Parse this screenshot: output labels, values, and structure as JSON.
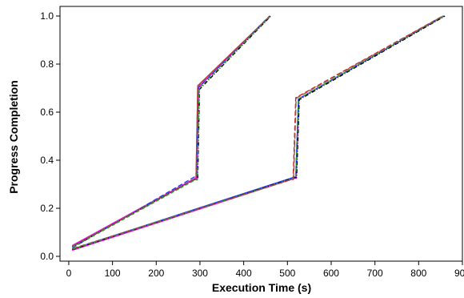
{
  "chart_data": {
    "type": "line",
    "title": "",
    "xlabel": "Execution Time (s)",
    "ylabel": "Progress Completion",
    "xlim": [
      -20,
      900
    ],
    "ylim": [
      -0.02,
      1.04
    ],
    "xticks": [
      0,
      100,
      200,
      300,
      400,
      500,
      600,
      700,
      800,
      900
    ],
    "yticks": [
      0.0,
      0.2,
      0.4,
      0.6,
      0.8,
      1.0
    ],
    "xtick_labels": [
      "0",
      "100",
      "200",
      "300",
      "400",
      "500",
      "600",
      "700",
      "800",
      "900"
    ],
    "ytick_labels": [
      "0.0",
      "0.2",
      "0.4",
      "0.6",
      "0.8",
      "1.0"
    ],
    "grid": false,
    "legend": "none",
    "series": [
      {
        "color": "#e31a1c",
        "dash": "",
        "x": [
          8,
          286,
          291,
          295,
          460
        ],
        "y": [
          0.04,
          0.32,
          0.32,
          0.71,
          1.0
        ]
      },
      {
        "color": "#ff00ff",
        "dash": "",
        "x": [
          8,
          289,
          293,
          297,
          461
        ],
        "y": [
          0.045,
          0.325,
          0.325,
          0.705,
          1.0
        ]
      },
      {
        "color": "#1f3fff",
        "dash": "6,3",
        "x": [
          8,
          287,
          292,
          296,
          459
        ],
        "y": [
          0.035,
          0.33,
          0.33,
          0.7,
          1.0
        ]
      },
      {
        "color": "#000000",
        "dash": "5,2,1,2",
        "x": [
          8,
          288,
          295,
          299,
          462
        ],
        "y": [
          0.04,
          0.32,
          0.32,
          0.695,
          1.0
        ]
      },
      {
        "color": "#2ca02c",
        "dash": "4,3",
        "x": [
          9,
          289,
          294,
          298,
          461
        ],
        "y": [
          0.038,
          0.318,
          0.318,
          0.7,
          1.0
        ]
      },
      {
        "color": "#8c564b",
        "dash": "7,3",
        "x": [
          8,
          288,
          291,
          295,
          460
        ],
        "y": [
          0.042,
          0.322,
          0.322,
          0.708,
          1.0
        ]
      },
      {
        "color": "#ff00ff",
        "dash": "",
        "x": [
          8,
          517,
          520,
          526,
          857
        ],
        "y": [
          0.025,
          0.325,
          0.325,
          0.655,
          1.0
        ]
      },
      {
        "color": "#e31a1c",
        "dash": "6,3",
        "x": [
          8,
          510,
          513,
          519,
          855
        ],
        "y": [
          0.03,
          0.32,
          0.32,
          0.66,
          1.0
        ]
      },
      {
        "color": "#1f3fff",
        "dash": "",
        "x": [
          8,
          516,
          519,
          525,
          858
        ],
        "y": [
          0.03,
          0.33,
          0.33,
          0.655,
          1.0
        ]
      },
      {
        "color": "#000000",
        "dash": "5,2,1,2",
        "x": [
          8,
          518,
          521,
          527,
          860
        ],
        "y": [
          0.028,
          0.328,
          0.328,
          0.652,
          1.0
        ]
      },
      {
        "color": "#2ca02c",
        "dash": "4,3",
        "x": [
          9,
          517,
          519,
          525,
          857
        ],
        "y": [
          0.03,
          0.325,
          0.325,
          0.655,
          1.0
        ]
      },
      {
        "color": "#8c564b",
        "dash": "7,3",
        "x": [
          8,
          512,
          514,
          520,
          856
        ],
        "y": [
          0.032,
          0.322,
          0.322,
          0.658,
          1.0
        ]
      }
    ]
  }
}
